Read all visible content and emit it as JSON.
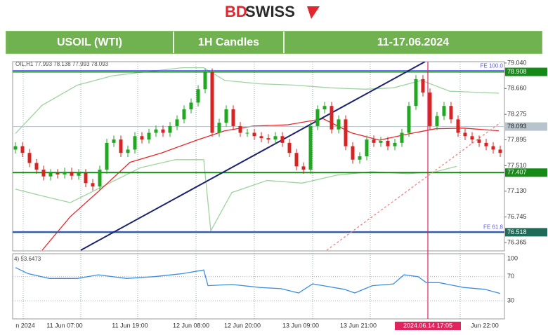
{
  "brand": {
    "accent": "BD",
    "rest": "SWISS"
  },
  "chart_data": {
    "type": "candlestick",
    "title": "USOIL (WTI)",
    "subtitle": "1H Candles",
    "period": "11-17.06.2024",
    "info": "OIL,H1 77.993 78.138 77.993 78.093",
    "up_color": "#22a722",
    "down_color": "#d42424",
    "open": [
      77.75,
      77.8,
      77.7,
      77.55,
      77.45,
      77.35,
      77.4,
      77.38,
      77.42,
      77.36,
      77.4,
      77.25,
      77.2,
      77.45,
      77.85,
      77.9,
      77.7,
      77.75,
      77.95,
      77.9,
      78.0,
      78.05,
      78.0,
      78.1,
      78.2,
      78.35,
      78.45,
      78.65,
      78.9,
      78.0,
      78.15,
      78.35,
      78.1,
      78.0,
      78.0,
      77.95,
      77.92,
      77.9,
      77.95,
      77.85,
      77.7,
      77.5,
      77.45,
      78.1,
      78.35,
      78.4,
      78.05,
      78.2,
      77.8,
      77.6,
      77.65,
      77.9,
      77.85,
      77.88,
      77.8,
      77.85,
      78.0,
      78.4,
      78.8,
      78.6,
      78.1,
      78.25,
      78.4,
      78.2,
      78.0,
      77.95,
      77.9,
      77.85,
      77.8,
      77.75
    ],
    "high": [
      77.86,
      77.86,
      77.76,
      77.61,
      77.51,
      77.46,
      77.46,
      77.48,
      77.48,
      77.46,
      77.46,
      77.31,
      77.51,
      77.91,
      77.96,
      77.96,
      77.81,
      78.01,
      78.01,
      78.06,
      78.11,
      78.11,
      78.16,
      78.26,
      78.41,
      78.51,
      78.71,
      78.96,
      78.96,
      78.21,
      78.41,
      78.41,
      78.16,
      78.06,
      78.06,
      78.01,
      77.98,
      78.01,
      78.01,
      77.91,
      77.76,
      77.56,
      78.16,
      78.41,
      78.46,
      78.46,
      78.26,
      78.26,
      77.86,
      77.71,
      77.96,
      77.96,
      77.94,
      77.94,
      77.91,
      78.06,
      78.46,
      78.86,
      78.86,
      78.66,
      78.31,
      78.46,
      78.46,
      78.26,
      78.06,
      78.01,
      77.96,
      77.91,
      77.86,
      77.81
    ],
    "low": [
      77.69,
      77.64,
      77.49,
      77.39,
      77.29,
      77.29,
      77.32,
      77.32,
      77.3,
      77.3,
      77.19,
      77.14,
      77.14,
      77.39,
      77.79,
      77.64,
      77.64,
      77.69,
      77.84,
      77.84,
      77.94,
      77.94,
      77.94,
      78.04,
      78.14,
      78.29,
      78.39,
      78.59,
      77.94,
      77.94,
      78.09,
      78.04,
      77.94,
      77.94,
      77.89,
      77.86,
      77.84,
      77.84,
      77.79,
      77.64,
      77.44,
      77.39,
      77.39,
      78.04,
      78.29,
      77.99,
      77.99,
      77.74,
      77.54,
      77.54,
      77.59,
      77.79,
      77.79,
      77.74,
      77.74,
      77.79,
      77.94,
      78.34,
      78.54,
      78.04,
      78.04,
      78.19,
      78.14,
      77.94,
      77.89,
      77.84,
      77.79,
      77.74,
      77.69,
      77.64
    ],
    "close": [
      77.8,
      77.7,
      77.55,
      77.45,
      77.35,
      77.4,
      77.38,
      77.42,
      77.36,
      77.4,
      77.25,
      77.2,
      77.45,
      77.85,
      77.9,
      77.7,
      77.75,
      77.95,
      77.9,
      78.0,
      78.05,
      78.0,
      78.1,
      78.2,
      78.35,
      78.45,
      78.65,
      78.9,
      78.0,
      78.15,
      78.35,
      78.1,
      78.0,
      78.0,
      77.95,
      77.92,
      77.9,
      77.95,
      77.85,
      77.7,
      77.5,
      77.45,
      78.1,
      78.35,
      78.4,
      78.05,
      78.2,
      77.8,
      77.6,
      77.65,
      77.9,
      77.85,
      77.88,
      77.8,
      77.85,
      78.0,
      78.4,
      78.8,
      78.6,
      78.1,
      78.25,
      78.4,
      78.2,
      78.0,
      77.95,
      77.9,
      77.85,
      77.8,
      77.75,
      77.7
    ],
    "xlim": [
      -0.4,
      69.6
    ],
    "ylim": [
      76.24,
      79.06
    ],
    "yticks": [
      {
        "value": 79.04,
        "label": "79.040"
      },
      {
        "value": 78.66,
        "label": "78.660"
      },
      78.275,
      77.895,
      {
        "value": 77.51,
        "label": "77.510"
      },
      {
        "value": 77.13,
        "label": "77.130"
      },
      76.745,
      76.365
    ],
    "xticks": [
      {
        "value": 1.4,
        "label": "n 2024"
      },
      {
        "value": 7,
        "label": "11 Jun 07:00"
      },
      {
        "value": 16.3,
        "label": "11 Jun 19:00"
      },
      {
        "value": 25,
        "label": "12 Jun 08:00"
      },
      {
        "value": 32.3,
        "label": "12 Jun 20:00"
      },
      {
        "value": 40.6,
        "label": "13 Jun 09:00"
      },
      {
        "value": 48.8,
        "label": "13 Jun 21:00"
      },
      {
        "value": 58.7,
        "label": "2024.06.14 17:05"
      },
      {
        "value": 66.8,
        "label": "Jun 22:00"
      }
    ],
    "xgrid": [
      1.1,
      9.3,
      17.4,
      25.7,
      34,
      42.3,
      50.5,
      63.3
    ],
    "crosshair_x": 58.7,
    "crosshair_color": "#e0245e",
    "overlays": [
      {
        "color": "#9fd39f",
        "x": [
          0,
          3.8,
          8.8,
          13.8,
          17.8,
          23.8,
          26.8,
          29.8,
          34.8,
          39.8,
          44.8,
          49.8,
          53.8,
          57.8,
          61.8,
          68.8
        ],
        "values": [
          77.99,
          78.41,
          78.71,
          78.85,
          78.9,
          78.97,
          78.97,
          78.78,
          78.73,
          78.71,
          78.67,
          78.65,
          78.67,
          78.78,
          78.62,
          78.59
        ]
      },
      {
        "color": "#9fd39f",
        "x": [
          0,
          3.8,
          7.8,
          12.8,
          17.8,
          22.8,
          26.8,
          27.8,
          30.8,
          35.8,
          40.8,
          45.8,
          50.8,
          55.8,
          59.8,
          62.8
        ],
        "values": [
          77.16,
          77.06,
          76.96,
          77.22,
          77.48,
          77.6,
          77.6,
          76.54,
          77.11,
          77.29,
          77.25,
          77.37,
          77.42,
          77.39,
          77.42,
          77.5
        ]
      },
      {
        "color": "#e8262b",
        "x": [
          3.8,
          7.8,
          12.8,
          16.3,
          20.8,
          25.8,
          29.8,
          33.8,
          38.8,
          43.8,
          47.8,
          51.8,
          55.8,
          59.8,
          63.8,
          68.8
        ],
        "values": [
          76.25,
          76.75,
          77.22,
          77.56,
          77.7,
          77.89,
          78.03,
          78.1,
          78.12,
          78.21,
          78.0,
          77.89,
          77.98,
          78.06,
          78.07,
          78.03
        ]
      }
    ],
    "trendlines": [
      {
        "color": "#1c2370",
        "dash": false,
        "x": [
          9.3,
          58.3
        ],
        "values": [
          76.25,
          79.06
        ]
      },
      {
        "color": "#f08080",
        "dash": true,
        "x": [
          44.3,
          69
        ],
        "values": [
          76.25,
          78.15
        ]
      }
    ],
    "levels": [
      {
        "value": 78.908,
        "color": "#168a16"
      },
      {
        "value": 78.093,
        "color": "#b8c4cc"
      },
      {
        "value": 77.407,
        "color": "#168a16"
      },
      {
        "value": 76.518,
        "color": "#1f6b5a"
      }
    ],
    "fib": [
      {
        "label": "FE 100.0",
        "value": 78.93,
        "color": "#5a5af0"
      },
      {
        "label": "FE 61.8",
        "value": 76.53,
        "color": "#5a5af0"
      }
    ],
    "rsi": {
      "label": "4) 53.6473",
      "color": "#3d8fe0",
      "ylim": [
        0,
        108
      ],
      "yticks": [
        100,
        70,
        30
      ],
      "x": [
        0,
        1.8,
        4.8,
        8.8,
        11.8,
        15.8,
        19.8,
        23.8,
        26.8,
        27.4,
        30.8,
        34.8,
        37.8,
        40.3,
        42.3,
        43.8,
        46.8,
        48.3,
        50.8,
        53.8,
        55.3,
        57.3,
        58.5,
        60.3,
        63.8,
        66.8,
        69
      ],
      "values": [
        85,
        75,
        67,
        67,
        73,
        67,
        70,
        75,
        81,
        55,
        57,
        52,
        50,
        43,
        58,
        55,
        49,
        43,
        55,
        58,
        73,
        70,
        60,
        60,
        52,
        49,
        42
      ]
    }
  }
}
